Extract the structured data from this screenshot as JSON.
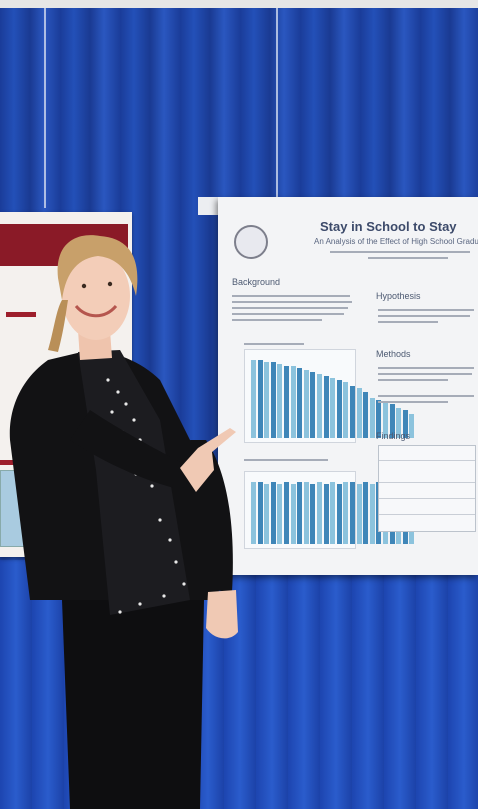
{
  "poster": {
    "title": "Stay in School to Stay",
    "subtitle": "An Analysis of the Effect of High School Graduat",
    "sections": {
      "background": "Background",
      "hypothesis": "Hypothesis",
      "methods": "Methods",
      "findings": "Findings"
    }
  },
  "colors": {
    "curtain": "#2350b8",
    "poster_bg": "#f3f4f6",
    "poster_title": "#3c4a6a",
    "chart_bar": "#8cc3dd",
    "left_poster_accent": "#8a1a27",
    "jacket": "#121214",
    "hair": "#c8a06a"
  }
}
